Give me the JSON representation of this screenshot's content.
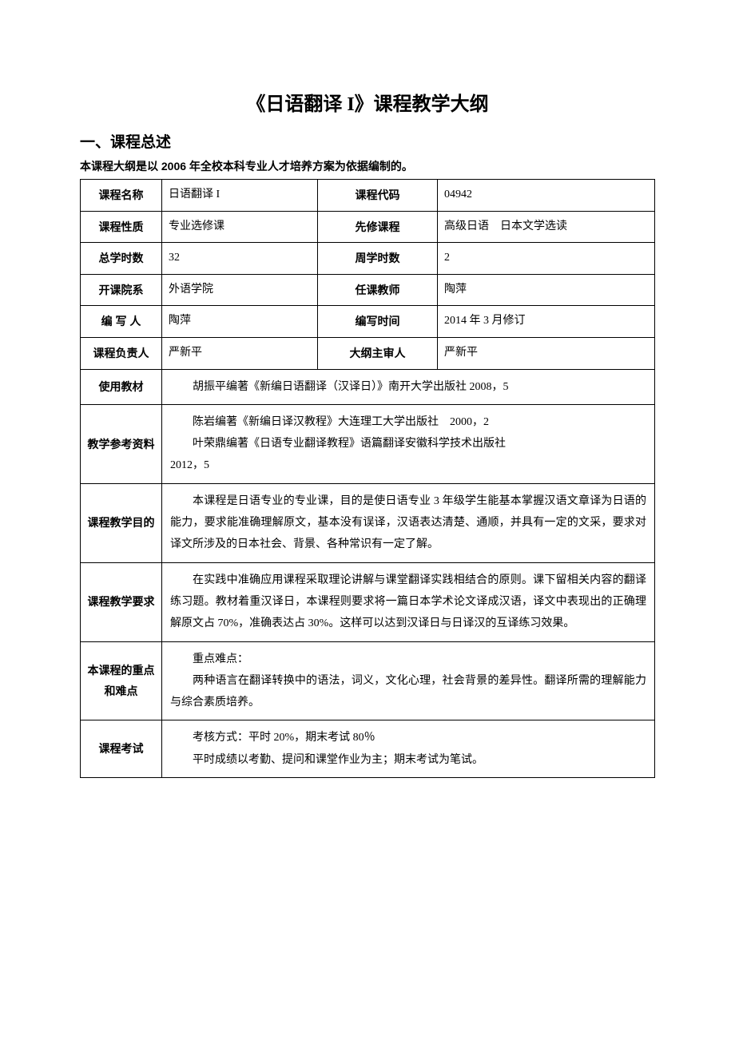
{
  "title": "《日语翻译 I》课程教学大纲",
  "section_heading": "一、课程总述",
  "subtitle": "本课程大纲是以 2006 年全校本科专业人才培养方案为依据编制的。",
  "rows": {
    "course_name": {
      "label": "课程名称",
      "value": "日语翻译 I",
      "label2": "课程代码",
      "value2": "04942"
    },
    "course_nature": {
      "label": "课程性质",
      "value": "专业选修课",
      "label2": "先修课程",
      "value2": "高级日语　日本文学选读"
    },
    "total_hours": {
      "label": "总学时数",
      "value": "32",
      "label2": "周学时数",
      "value2": "2"
    },
    "department": {
      "label": "开课院系",
      "value": "外语学院",
      "label2": "任课教师",
      "value2": "陶萍"
    },
    "author": {
      "label": "编 写 人",
      "value": "陶萍",
      "label2": "编写时间",
      "value2": "2014 年 3 月修订"
    },
    "leader": {
      "label": "课程负责人",
      "value": "严新平",
      "label2": "大纲主审人",
      "value2": "严新平"
    },
    "textbook": {
      "label": "使用教材",
      "value": "胡振平编著《新编日语翻译（汉译日）》南开大学出版社 2008，5"
    },
    "references": {
      "label": "教学参考资料",
      "line1": "陈岩编著《新编日译汉教程》大连理工大学出版社　2000，2",
      "line2": "叶荣鼎编著《日语专业翻译教程》语篇翻译安徽科学技术出版社",
      "line3": "2012，5"
    },
    "objectives": {
      "label": "课程教学目的",
      "value": "本课程是日语专业的专业课，目的是使日语专业 3 年级学生能基本掌握汉语文章译为日语的能力，要求能准确理解原文，基本没有误译，汉语表达清楚、通顺，并具有一定的文采，要求对译文所涉及的日本社会、背景、各种常识有一定了解。"
    },
    "requirements": {
      "label": "课程教学要求",
      "value": "在实践中准确应用课程采取理论讲解与课堂翻译实践相结合的原则。课下留相关内容的翻译练习题。教材着重汉译日，本课程则要求将一篇日本学术论文译成汉语，译文中表现出的正确理解原文占 70%，准确表达占 30%。这样可以达到汉译日与日译汉的互译练习效果。"
    },
    "keypoints": {
      "label": "本课程的重点和难点",
      "line1": "重点难点：",
      "line2": "两种语言在翻译转换中的语法，词义，文化心理，社会背景的差异性。翻译所需的理解能力与综合素质培养。"
    },
    "exam": {
      "label": "课程考试",
      "line1": "考核方式：平时 20%，期末考试 80％",
      "line2": "平时成绩以考勤、提问和课堂作业为主；期末考试为笔试。"
    }
  }
}
